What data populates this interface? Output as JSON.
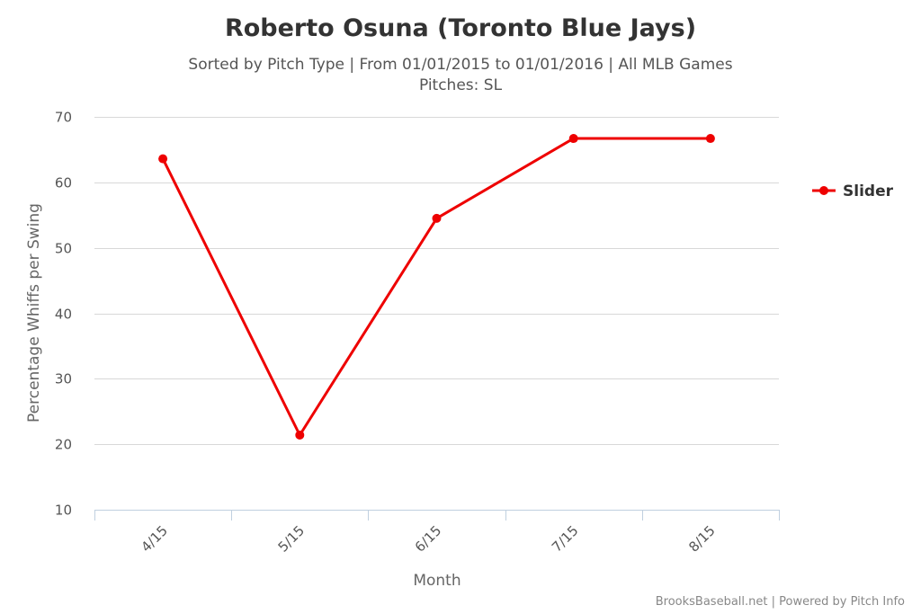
{
  "chart_data": {
    "type": "line",
    "title": "Roberto Osuna (Toronto Blue Jays)",
    "subtitle_line1": "Sorted by Pitch Type | From 01/01/2015 to 01/01/2016 | All MLB Games",
    "subtitle_line2": "Pitches: SL",
    "xlabel": "Month",
    "ylabel": "Percentage Whiffs per Swing",
    "categories": [
      "4/15",
      "5/15",
      "6/15",
      "7/15",
      "8/15"
    ],
    "ylim": [
      10,
      70
    ],
    "yticks": [
      10,
      20,
      30,
      40,
      50,
      60,
      70
    ],
    "grid": true,
    "legend_position": "right",
    "series": [
      {
        "name": "Slider",
        "color": "#ee0000",
        "values": [
          63.6,
          21.4,
          54.5,
          66.7,
          66.7
        ]
      }
    ]
  },
  "credits": "BrooksBaseball.net | Powered by Pitch Info"
}
